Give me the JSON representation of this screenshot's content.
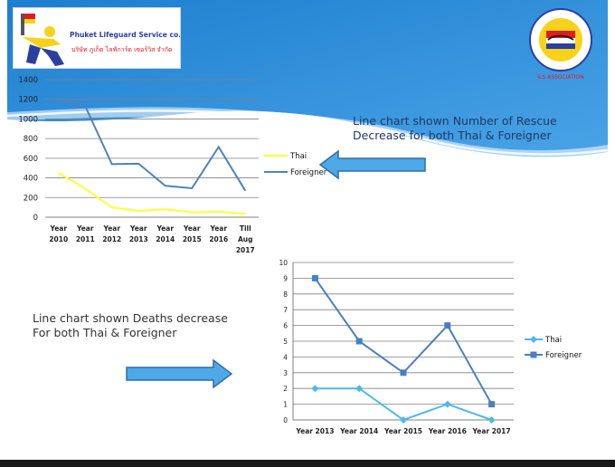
{
  "logo_left": {
    "company": "Phuket Lifeguard Service co., Ltd.",
    "company_thai": "บริษัท ภูเก็ต ไลฟ์การ์ด เซอร์วิส จำกัด"
  },
  "logo_right": {
    "association": "ILS ASSOCIATION"
  },
  "captions": {
    "rescue_line1": "Line chart shown Number of Rescue",
    "rescue_line2": "Decrease for both Thai & Foreigner",
    "deaths_line1": "Line chart shown Deaths decrease",
    "deaths_line2": " For both Thai & Foreigner"
  },
  "colors": {
    "thai_rescue": "#ffff33",
    "foreigner_rescue": "#4f81bd",
    "thai_deaths": "#4fb8ec",
    "foreigner_deaths": "#4a7fc1",
    "gridline": "#808080"
  },
  "chart_data": [
    {
      "type": "line",
      "categories": [
        [
          "Year",
          "2010"
        ],
        [
          "Year",
          "2011"
        ],
        [
          "Year",
          "2012"
        ],
        [
          "Year",
          "2013"
        ],
        [
          "Year",
          "2014"
        ],
        [
          "Year",
          "2015"
        ],
        [
          "Year",
          "2016"
        ],
        [
          "Till",
          "Aug",
          "2017"
        ]
      ],
      "yticks": [
        "0",
        "200",
        "400",
        "600",
        "800",
        "1000",
        "1200",
        "1400"
      ],
      "ylim": [
        0,
        1400
      ],
      "grid": true,
      "legend_position": "right",
      "series": [
        {
          "name": "Thai",
          "values": [
            450,
            290,
            100,
            65,
            80,
            50,
            55,
            35
          ]
        },
        {
          "name": "Foreigner",
          "values": [
            1190,
            1130,
            540,
            545,
            320,
            295,
            715,
            270
          ]
        }
      ]
    },
    {
      "type": "line",
      "categories": [
        "Year 2013",
        "Year 2014",
        "Year 2015",
        "Year 2016",
        "Year 2017"
      ],
      "yticks": [
        "0",
        "1",
        "2",
        "3",
        "4",
        "5",
        "6",
        "7",
        "8",
        "9",
        "10"
      ],
      "ylim": [
        0,
        10
      ],
      "grid": true,
      "legend_position": "right",
      "series": [
        {
          "name": "Thai",
          "marker": "diamond",
          "values": [
            2,
            2,
            0,
            1,
            0
          ]
        },
        {
          "name": "Foreigner",
          "marker": "square",
          "values": [
            9,
            5,
            3,
            6,
            1
          ]
        }
      ]
    }
  ]
}
